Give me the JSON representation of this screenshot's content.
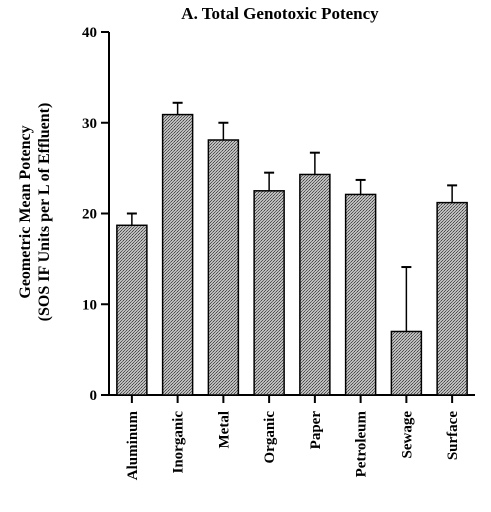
{
  "chart_data": {
    "type": "bar",
    "title": "A. Total Genotoxic Potency",
    "ylabel_line1": "Geometric Mean Potency",
    "ylabel_line2": "(SOS IF Units per L of Effluent)",
    "xlabel": "",
    "ylim": [
      0,
      40
    ],
    "yticks": [
      0,
      10,
      20,
      30,
      40
    ],
    "categories": [
      "Aluminum",
      "Inorganic",
      "Metal",
      "Organic",
      "Paper",
      "Petroleum",
      "Sewage",
      "Surface"
    ],
    "values": [
      18.7,
      30.9,
      28.1,
      22.5,
      24.3,
      22.1,
      7.0,
      21.2
    ],
    "error_upper": [
      20.0,
      32.2,
      30.0,
      24.5,
      26.7,
      23.7,
      14.1,
      23.1
    ],
    "grid": false,
    "bar_fill": "#8a8a8a",
    "bar_stroke": "#000000"
  }
}
